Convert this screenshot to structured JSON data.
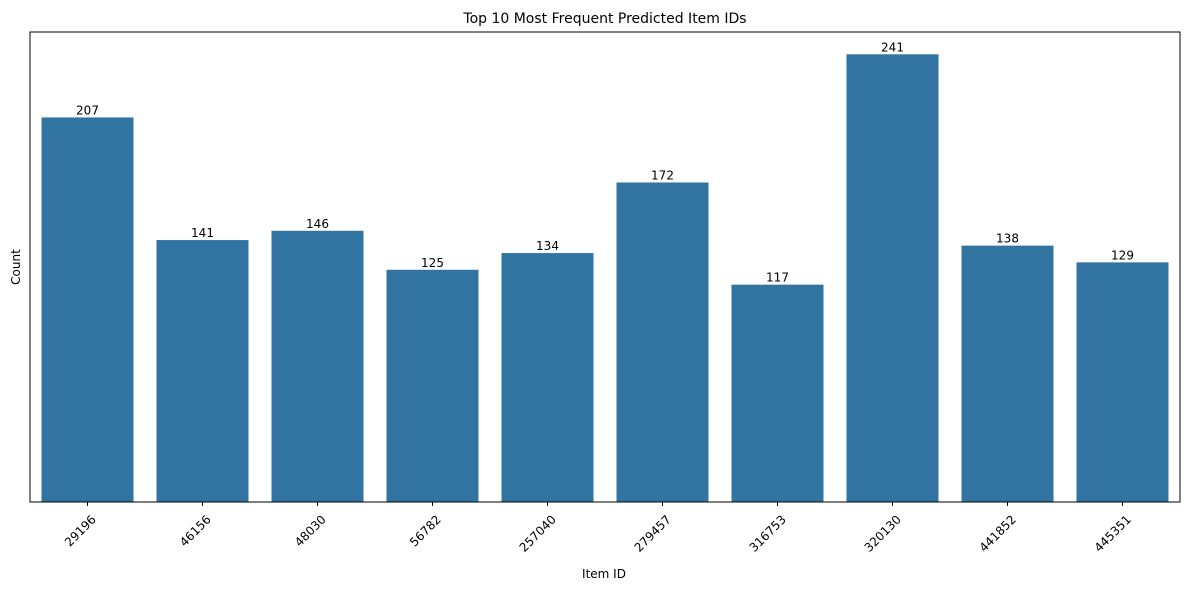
{
  "chart_data": {
    "type": "bar",
    "title": "Top 10 Most Frequent Predicted Item IDs",
    "xlabel": "Item ID",
    "ylabel": "Count",
    "categories": [
      "29196",
      "46156",
      "48030",
      "56782",
      "257040",
      "279457",
      "316753",
      "320130",
      "441852",
      "445351"
    ],
    "values": [
      207,
      141,
      146,
      125,
      134,
      172,
      117,
      241,
      138,
      129
    ],
    "ylim": [
      0,
      253
    ],
    "y_ticks_visible": false,
    "x_tick_rotation_deg": 45,
    "grid": false,
    "legend": "none",
    "bar_color": "#3274a1",
    "data_labels": true
  }
}
